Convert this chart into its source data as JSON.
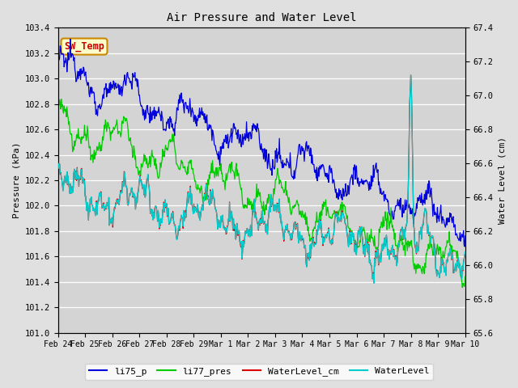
{
  "title": "Air Pressure and Water Level",
  "ylabel_left": "Pressure (kPa)",
  "ylabel_right": "Water Level (cm)",
  "ylim_left": [
    101.0,
    103.4
  ],
  "ylim_right": [
    65.6,
    67.4
  ],
  "color_li75_p": "#0000dd",
  "color_li77_pres": "#00cc00",
  "color_waterlevel_cm": "#dd0000",
  "color_waterlevel": "#00cccc",
  "bg_color": "#e0e0e0",
  "annotation_text": "SW_Temp",
  "annotation_color": "#cc0000",
  "annotation_bg": "#ffffcc",
  "annotation_border": "#cc8800",
  "legend_labels": [
    "li75_p",
    "li77_pres",
    "WaterLevel_cm",
    "WaterLevel"
  ],
  "xlabel_ticks": [
    "Feb 24",
    "Feb 25",
    "Feb 26",
    "Feb 27",
    "Feb 28",
    "Feb 29",
    "Mar 1",
    "Mar 2",
    "Mar 3",
    "Mar 4",
    "Mar 5",
    "Mar 6",
    "Mar 7",
    "Mar 8",
    "Mar 9",
    "Mar 10"
  ]
}
